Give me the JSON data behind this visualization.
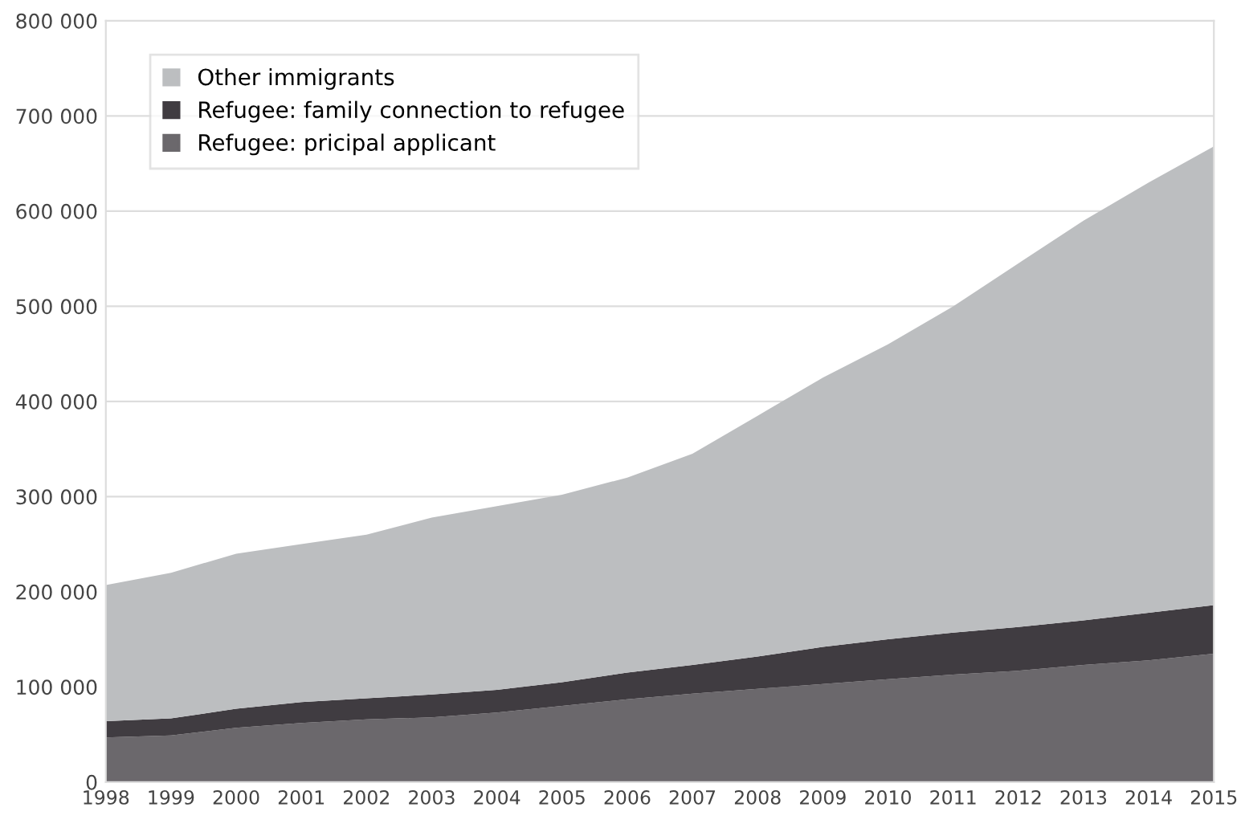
{
  "chart_data": {
    "type": "area",
    "stacked": true,
    "x": [
      1998,
      1999,
      2000,
      2001,
      2002,
      2003,
      2004,
      2005,
      2006,
      2007,
      2008,
      2009,
      2010,
      2011,
      2012,
      2013,
      2014,
      2015
    ],
    "series": [
      {
        "name": "Refugee: pricipal applicant",
        "color": "#6b686c",
        "values": [
          47000,
          49000,
          57000,
          62000,
          66000,
          68000,
          73000,
          80000,
          87000,
          93000,
          98000,
          103000,
          108000,
          113000,
          117000,
          123000,
          128000,
          135000
        ]
      },
      {
        "name": "Refugee: family connection to refugee",
        "color": "#403c41",
        "values": [
          17000,
          18000,
          20000,
          22000,
          22000,
          24000,
          24000,
          25000,
          28000,
          30000,
          34000,
          39000,
          42000,
          44000,
          46000,
          47000,
          50000,
          51000
        ]
      },
      {
        "name": "Other immigrants",
        "color": "#bcbec0",
        "values": [
          143000,
          153000,
          163000,
          166000,
          172000,
          186000,
          193000,
          197000,
          205000,
          222000,
          253000,
          283000,
          310000,
          343000,
          382000,
          420000,
          452000,
          482000
        ]
      }
    ],
    "xlim": [
      1998,
      2015
    ],
    "xticks": [
      1998,
      1999,
      2000,
      2001,
      2002,
      2003,
      2004,
      2005,
      2006,
      2007,
      2008,
      2009,
      2010,
      2011,
      2012,
      2013,
      2014,
      2015
    ],
    "ylim": [
      0,
      800000
    ],
    "yticks": [
      {
        "value": 0,
        "label": "0"
      },
      {
        "value": 100000,
        "label": "100 000"
      },
      {
        "value": 200000,
        "label": "200 000"
      },
      {
        "value": 300000,
        "label": "300 000"
      },
      {
        "value": 400000,
        "label": "400 000"
      },
      {
        "value": 500000,
        "label": "500 000"
      },
      {
        "value": 600000,
        "label": "600 000"
      },
      {
        "value": 700000,
        "label": "700 000"
      },
      {
        "value": 800000,
        "label": "800 000"
      }
    ],
    "grid": "y",
    "legend": "top left"
  }
}
